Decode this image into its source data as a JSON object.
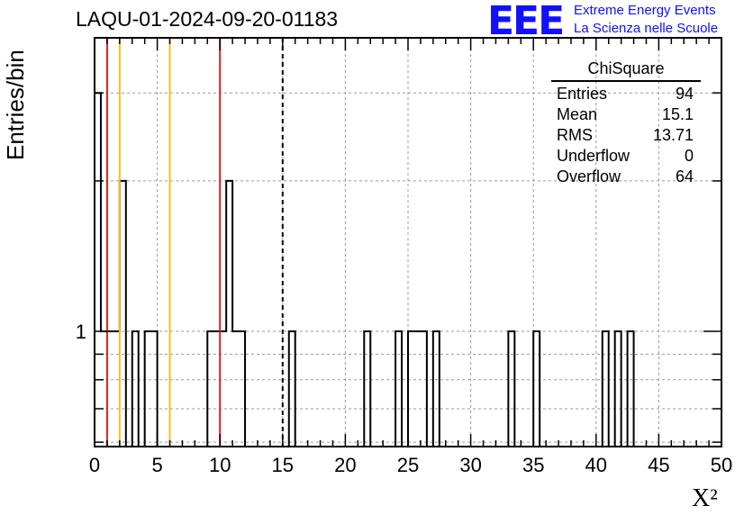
{
  "chart_data": {
    "type": "bar",
    "title": "LAQU-01-2024-09-20-01183",
    "xlabel": "X²",
    "ylabel": "Entries/bin",
    "xlim": [
      0,
      50
    ],
    "y_scale": "log",
    "x_ticks": [
      "0",
      "5",
      "10",
      "15",
      "20",
      "25",
      "30",
      "35",
      "40",
      "45",
      "50"
    ],
    "y_ticks": [
      "1"
    ],
    "bin_width": 0.5,
    "bin_edges": [
      0,
      0.5,
      1,
      1.5,
      2,
      2.5,
      3,
      3.5,
      4,
      4.5,
      5,
      9,
      9.5,
      10,
      10.5,
      11,
      11.5,
      12,
      15.5,
      16,
      21.5,
      22,
      24,
      24.5,
      25,
      25.5,
      26,
      26.5,
      27,
      27.5,
      33,
      33.5,
      35,
      35.5,
      40.5,
      41,
      41.5,
      42,
      42.5,
      43
    ],
    "counts": [
      3,
      1,
      1,
      1,
      2,
      0,
      1,
      0,
      1,
      1,
      0,
      1,
      1,
      1,
      2,
      1,
      1,
      0,
      1,
      0,
      1,
      0,
      1,
      0,
      1,
      1,
      1,
      0,
      1,
      0,
      1,
      0,
      1,
      0,
      1,
      0,
      1,
      0,
      1
    ],
    "vertical_lines": [
      {
        "x": 1,
        "color": "#e02020",
        "style": "solid"
      },
      {
        "x": 2,
        "color": "#f0c020",
        "style": "solid"
      },
      {
        "x": 6,
        "color": "#f0c020",
        "style": "solid"
      },
      {
        "x": 10,
        "color": "#e02020",
        "style": "solid"
      },
      {
        "x": 15,
        "color": "#000000",
        "style": "dashed"
      }
    ],
    "grid": true,
    "legend": "top-right"
  },
  "stats_box": {
    "title": "ChiSquare",
    "rows": [
      {
        "label": "Entries",
        "value": "94"
      },
      {
        "label": "Mean",
        "value": "15.1"
      },
      {
        "label": "RMS",
        "value": "13.71"
      },
      {
        "label": "Underflow",
        "value": "0"
      },
      {
        "label": "Overflow",
        "value": "64"
      }
    ]
  },
  "logo": {
    "mark": "EEE",
    "line1": "Extreme Energy Events",
    "line2": "La Scienza nelle Scuole",
    "color": "#1010ff"
  }
}
